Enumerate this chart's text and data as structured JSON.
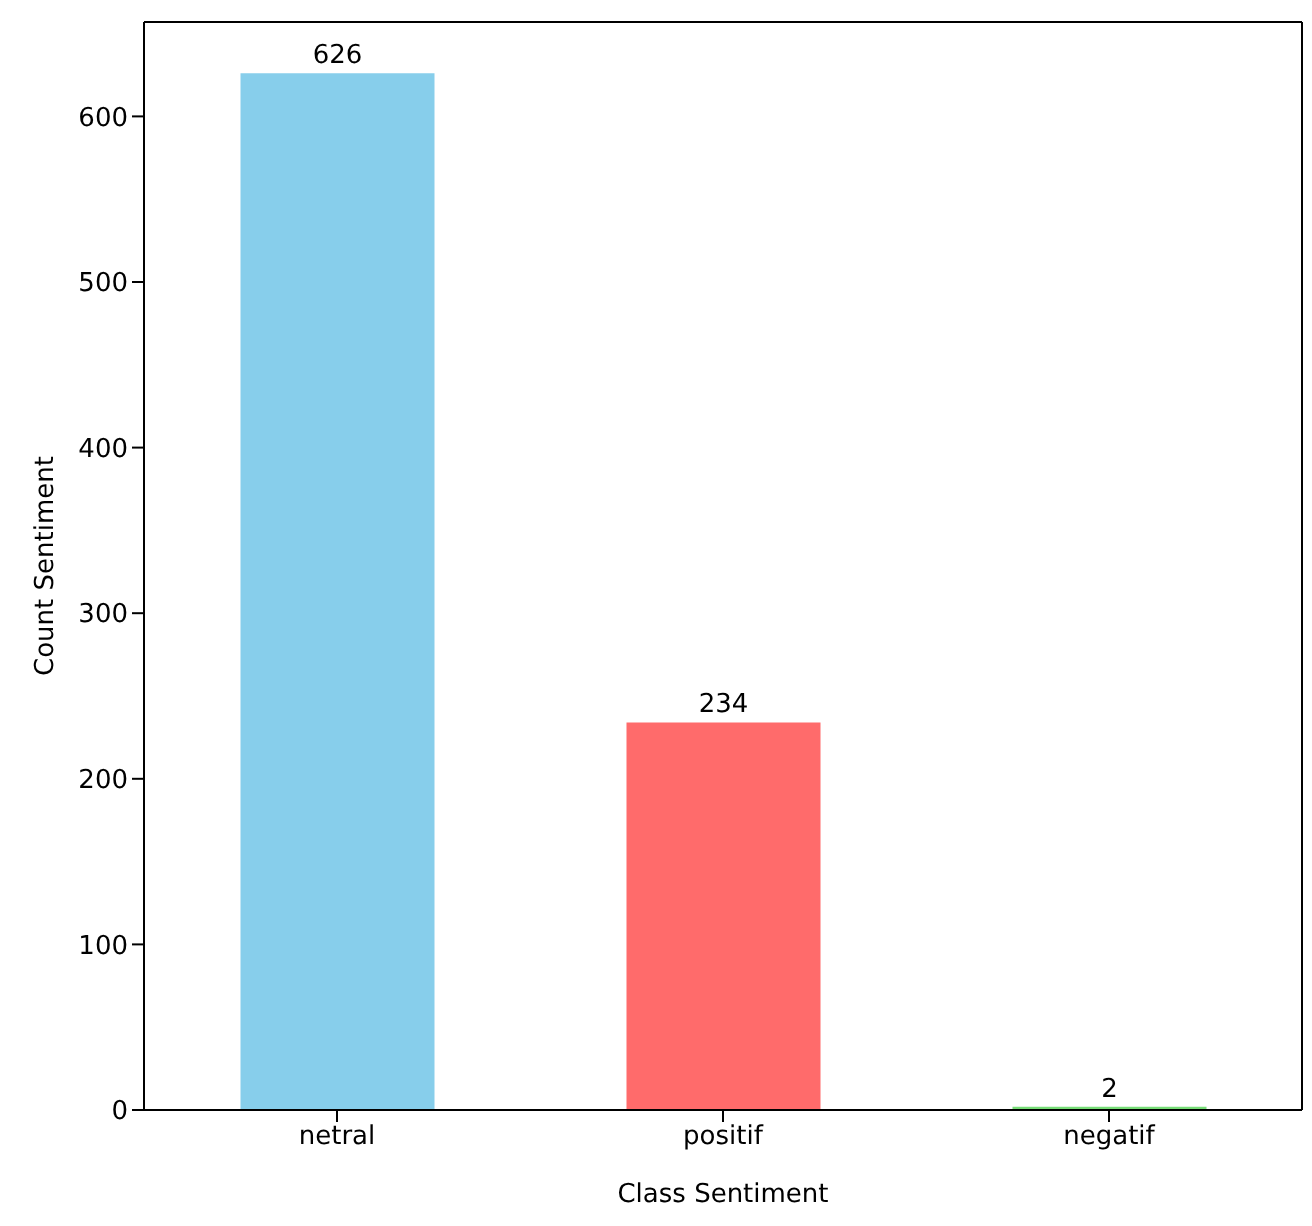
{
  "chart_data": {
    "type": "bar",
    "xlabel": "Class Sentiment",
    "ylabel": "Count Sentiment",
    "categories": [
      "netral",
      "positif",
      "negatif"
    ],
    "values": [
      626,
      234,
      2
    ],
    "colors": [
      "#87ceeb",
      "#ff6b6b",
      "#77dd77"
    ],
    "ylim": [
      0,
      657
    ],
    "yticks": [
      0,
      100,
      200,
      300,
      400,
      500,
      600
    ],
    "data_labels": true,
    "grid": false,
    "legend": false
  }
}
